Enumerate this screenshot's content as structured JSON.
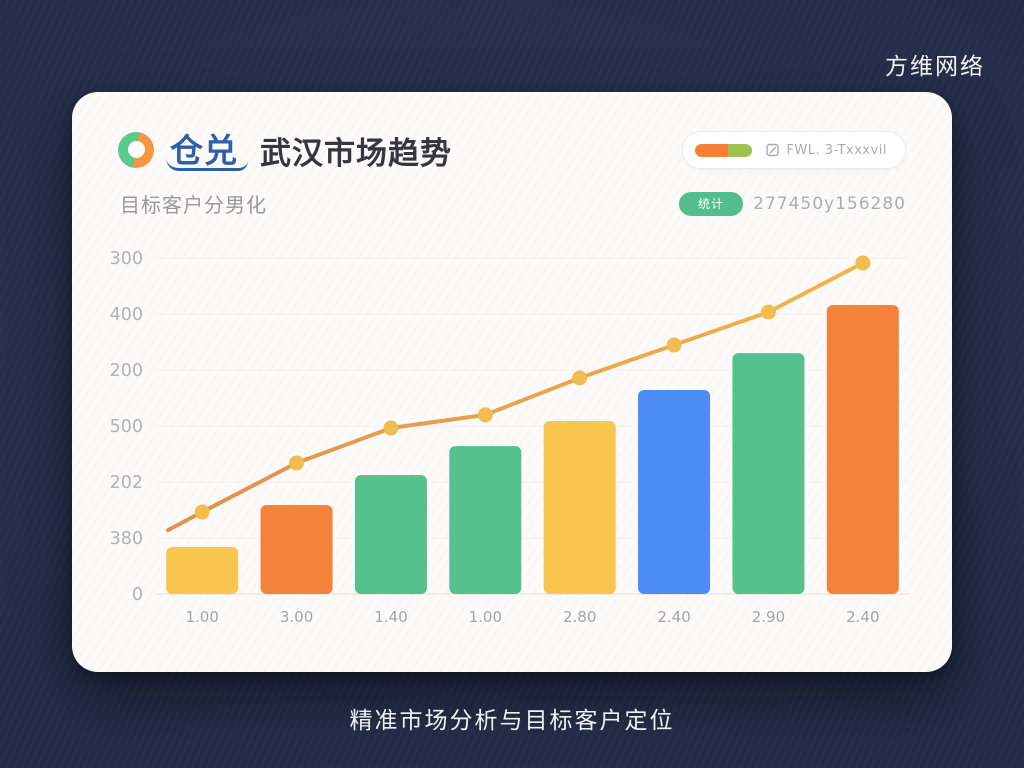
{
  "page": {
    "brand": "方维网络",
    "caption": "精准市场分析与目标客户定位"
  },
  "card": {
    "logo_text": "仓兑",
    "title": "武汉市场趋势",
    "subtitle": "目标客户分男化",
    "header_badge": {
      "label": "FWL. 3-Txxxvil"
    },
    "stat_badge": {
      "label": "统计",
      "value": "277450y156280"
    }
  },
  "chart_data": {
    "type": "bar",
    "title": "武汉市场趋势",
    "xlabel": "",
    "ylabel": "",
    "grid": true,
    "legend": "none",
    "categories": [
      "1.00",
      "3.00",
      "1.40",
      "1.00",
      "2.80",
      "2.40",
      "2.90",
      "2.40"
    ],
    "y_tick_labels": [
      "300",
      "400",
      "200",
      "500",
      "202",
      "380",
      "0"
    ],
    "series": [
      {
        "name": "bars",
        "type": "bar",
        "heights_pct": [
          14.0,
          26.5,
          35.4,
          44.0,
          51.5,
          60.7,
          71.7,
          86.0
        ],
        "bar_colors": [
          "yellow",
          "orange",
          "green",
          "green",
          "yellow",
          "blue",
          "green",
          "orange"
        ]
      },
      {
        "name": "trend-line",
        "type": "line",
        "heights_pct": [
          24.4,
          39.0,
          49.4,
          53.3,
          64.3,
          74.1,
          83.9,
          98.5
        ],
        "start_height_pct": 19.0
      }
    ],
    "colors": {
      "yellow": "#F8C64F",
      "orange": "#F5813A",
      "green": "#55C28E",
      "blue": "#4D8CF5",
      "line_start": "#E0914E",
      "line_end": "#F2B44C",
      "dot": "#F2BD4F",
      "grid": "#F2F1EE",
      "axis": "#E9E6E2",
      "y_tick_color": "#AFB2B8",
      "x_tick_color": "#A1A5AC"
    }
  }
}
